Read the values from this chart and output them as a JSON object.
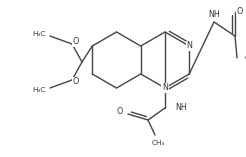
{
  "bg_color": "#ffffff",
  "line_color": "#444444",
  "text_color": "#333333",
  "lw": 1.0,
  "figsize": [
    2.46,
    1.57
  ],
  "dpi": 100,
  "xlim": [
    0,
    246
  ],
  "ylim": [
    0,
    157
  ]
}
